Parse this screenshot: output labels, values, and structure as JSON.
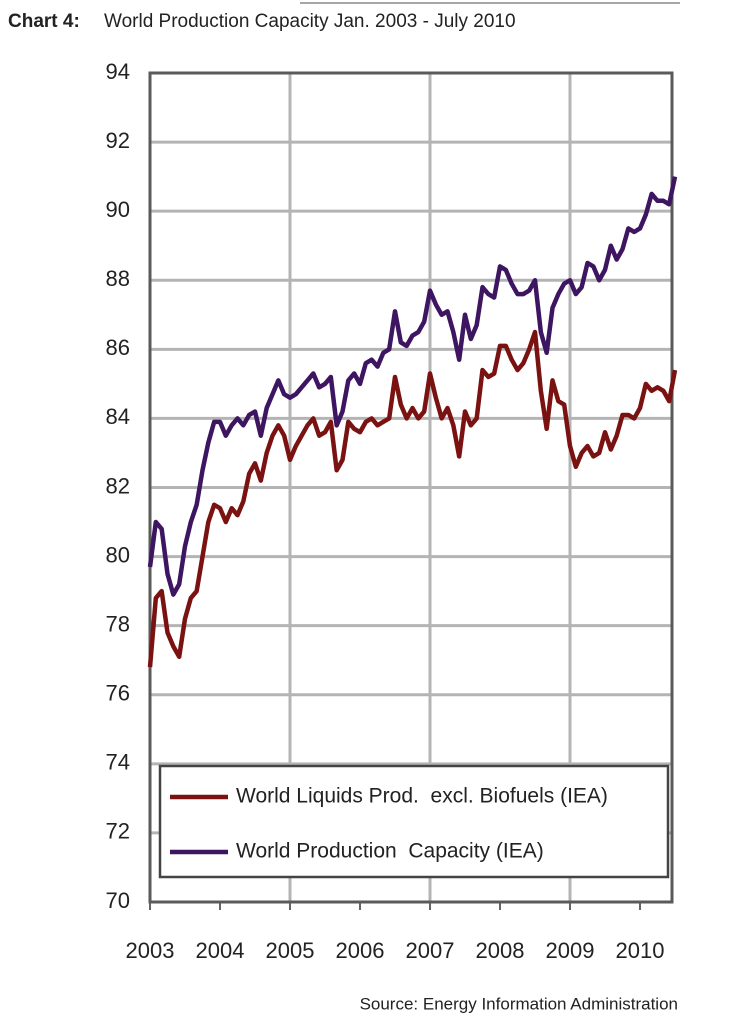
{
  "chart_data": {
    "type": "line",
    "title_label": "Chart 4:",
    "title": "World Production Capacity Jan. 2003 - July 2010",
    "source": "Source: Energy Information Administration",
    "categories": [
      "2003",
      null,
      null,
      null,
      null,
      null,
      null,
      null,
      null,
      null,
      null,
      null,
      "2004",
      null,
      null,
      null,
      null,
      null,
      null,
      null,
      null,
      null,
      null,
      null,
      "2005",
      null,
      null,
      null,
      null,
      null,
      null,
      null,
      null,
      null,
      null,
      null,
      "2006",
      null,
      null,
      null,
      null,
      null,
      null,
      null,
      null,
      null,
      null,
      null,
      "2007",
      null,
      null,
      null,
      null,
      null,
      null,
      null,
      null,
      null,
      null,
      null,
      "2008",
      null,
      null,
      null,
      null,
      null,
      null,
      null,
      null,
      null,
      null,
      null,
      "2009",
      null,
      null,
      null,
      null,
      null,
      null,
      null,
      null,
      null,
      null,
      null,
      "2010",
      null,
      null,
      null,
      null,
      null,
      null
    ],
    "series": [
      {
        "name": "World Liquids Prod.  excl. Biofuels (IEA)",
        "color": "#7a1212",
        "values": [
          76.8,
          78.8,
          79.0,
          77.8,
          77.4,
          77.1,
          78.2,
          78.8,
          79.0,
          80.0,
          81.0,
          81.5,
          81.4,
          81.0,
          81.4,
          81.2,
          81.6,
          82.4,
          82.7,
          82.2,
          83.0,
          83.5,
          83.8,
          83.5,
          82.8,
          83.2,
          83.5,
          83.8,
          84.0,
          83.5,
          83.6,
          83.9,
          82.5,
          82.8,
          83.9,
          83.7,
          83.6,
          83.9,
          84.0,
          83.8,
          83.9,
          84.0,
          85.2,
          84.4,
          84.0,
          84.3,
          84.0,
          84.2,
          85.3,
          84.6,
          84.0,
          84.3,
          83.8,
          82.9,
          84.2,
          83.8,
          84.0,
          85.4,
          85.2,
          85.3,
          86.1,
          86.1,
          85.7,
          85.4,
          85.6,
          86.0,
          86.5,
          84.8,
          83.7,
          85.1,
          84.5,
          84.4,
          83.2,
          82.6,
          83.0,
          83.2,
          82.9,
          83.0,
          83.6,
          83.1,
          83.5,
          84.1,
          84.1,
          84.0,
          84.3,
          85.0,
          84.8,
          84.9,
          84.8,
          84.5,
          85.4
        ]
      },
      {
        "name": "World Production  Capacity (IEA)",
        "color": "#3d1560",
        "values": [
          79.7,
          81.0,
          80.8,
          79.5,
          78.9,
          79.2,
          80.3,
          81.0,
          81.5,
          82.5,
          83.3,
          83.9,
          83.9,
          83.5,
          83.8,
          84.0,
          83.8,
          84.1,
          84.2,
          83.5,
          84.3,
          84.7,
          85.1,
          84.7,
          84.6,
          84.7,
          84.9,
          85.1,
          85.3,
          84.9,
          85.0,
          85.2,
          83.8,
          84.2,
          85.1,
          85.3,
          85.0,
          85.6,
          85.7,
          85.5,
          85.9,
          86.0,
          87.1,
          86.2,
          86.1,
          86.4,
          86.5,
          86.8,
          87.7,
          87.3,
          87.0,
          87.1,
          86.5,
          85.7,
          87.0,
          86.3,
          86.7,
          87.8,
          87.6,
          87.5,
          88.4,
          88.3,
          87.9,
          87.6,
          87.6,
          87.7,
          88.0,
          86.5,
          85.9,
          87.2,
          87.6,
          87.9,
          88.0,
          87.6,
          87.8,
          88.5,
          88.4,
          88.0,
          88.3,
          89.0,
          88.6,
          88.9,
          89.5,
          89.4,
          89.5,
          89.9,
          90.5,
          90.3,
          90.3,
          90.2,
          91.0
        ]
      }
    ],
    "ylim": [
      70,
      94
    ],
    "yticks": [
      70,
      72,
      74,
      76,
      78,
      80,
      82,
      84,
      86,
      88,
      90,
      92,
      94
    ],
    "grid": true,
    "legend": "bottom"
  }
}
